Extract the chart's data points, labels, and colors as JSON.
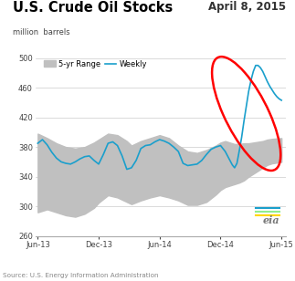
{
  "title": "U.S. Crude Oil Stocks",
  "date_label": "April 8, 2015",
  "ylabel": "million  barrels",
  "source": "Source: U.S. Energy Information Administration",
  "ylim": [
    260,
    510
  ],
  "yticks": [
    260,
    300,
    340,
    380,
    420,
    460,
    500
  ],
  "xtick_labels": [
    "Jun-13",
    "Dec-13",
    "Jun-14",
    "Dec-14",
    "Jun-15"
  ],
  "xtick_positions": [
    0,
    26,
    52,
    78,
    104
  ],
  "xlim": [
    -1,
    106
  ],
  "legend_range_label": "5-yr Range",
  "legend_weekly_label": "Weekly",
  "weekly_color": "#1A9FCC",
  "range_color": "#C0C0C0",
  "ellipse_color": "red",
  "background_color": "#FFFFFF",
  "weekly_keypoints": [
    [
      0,
      385
    ],
    [
      2,
      390
    ],
    [
      4,
      383
    ],
    [
      6,
      373
    ],
    [
      8,
      365
    ],
    [
      10,
      360
    ],
    [
      12,
      358
    ],
    [
      14,
      357
    ],
    [
      16,
      360
    ],
    [
      18,
      364
    ],
    [
      20,
      367
    ],
    [
      22,
      368
    ],
    [
      24,
      362
    ],
    [
      26,
      357
    ],
    [
      28,
      370
    ],
    [
      30,
      385
    ],
    [
      32,
      387
    ],
    [
      34,
      382
    ],
    [
      36,
      368
    ],
    [
      38,
      350
    ],
    [
      40,
      352
    ],
    [
      42,
      362
    ],
    [
      44,
      378
    ],
    [
      46,
      382
    ],
    [
      48,
      383
    ],
    [
      50,
      387
    ],
    [
      52,
      390
    ],
    [
      54,
      388
    ],
    [
      56,
      385
    ],
    [
      58,
      380
    ],
    [
      60,
      374
    ],
    [
      62,
      358
    ],
    [
      64,
      355
    ],
    [
      66,
      356
    ],
    [
      68,
      357
    ],
    [
      70,
      362
    ],
    [
      72,
      370
    ],
    [
      74,
      377
    ],
    [
      76,
      380
    ],
    [
      78,
      382
    ],
    [
      80,
      374
    ],
    [
      82,
      362
    ],
    [
      83,
      356
    ],
    [
      84,
      352
    ],
    [
      85,
      358
    ],
    [
      86,
      375
    ],
    [
      87,
      393
    ],
    [
      88,
      415
    ],
    [
      89,
      435
    ],
    [
      90,
      455
    ],
    [
      91,
      470
    ],
    [
      92,
      482
    ],
    [
      93,
      490
    ],
    [
      94,
      490
    ],
    [
      95,
      487
    ],
    [
      96,
      482
    ],
    [
      97,
      475
    ],
    [
      98,
      468
    ],
    [
      99,
      462
    ],
    [
      100,
      457
    ],
    [
      101,
      452
    ],
    [
      102,
      448
    ],
    [
      103,
      445
    ],
    [
      104,
      443
    ]
  ],
  "range_upper_keypoints": [
    [
      0,
      398
    ],
    [
      4,
      392
    ],
    [
      8,
      385
    ],
    [
      12,
      380
    ],
    [
      16,
      378
    ],
    [
      20,
      380
    ],
    [
      24,
      386
    ],
    [
      26,
      390
    ],
    [
      28,
      394
    ],
    [
      30,
      398
    ],
    [
      34,
      396
    ],
    [
      38,
      388
    ],
    [
      40,
      382
    ],
    [
      44,
      388
    ],
    [
      48,
      392
    ],
    [
      52,
      396
    ],
    [
      56,
      392
    ],
    [
      60,
      382
    ],
    [
      64,
      374
    ],
    [
      68,
      372
    ],
    [
      72,
      376
    ],
    [
      76,
      382
    ],
    [
      78,
      386
    ],
    [
      80,
      388
    ],
    [
      82,
      386
    ],
    [
      84,
      384
    ],
    [
      86,
      384
    ],
    [
      88,
      385
    ],
    [
      90,
      385
    ],
    [
      92,
      386
    ],
    [
      94,
      387
    ],
    [
      96,
      388
    ],
    [
      98,
      390
    ],
    [
      100,
      391
    ],
    [
      104,
      392
    ]
  ],
  "range_lower_keypoints": [
    [
      0,
      292
    ],
    [
      4,
      296
    ],
    [
      8,
      292
    ],
    [
      12,
      288
    ],
    [
      16,
      286
    ],
    [
      20,
      290
    ],
    [
      24,
      298
    ],
    [
      26,
      305
    ],
    [
      28,
      310
    ],
    [
      30,
      315
    ],
    [
      34,
      312
    ],
    [
      38,
      306
    ],
    [
      40,
      303
    ],
    [
      44,
      308
    ],
    [
      48,
      312
    ],
    [
      52,
      315
    ],
    [
      56,
      312
    ],
    [
      60,
      308
    ],
    [
      64,
      302
    ],
    [
      68,
      302
    ],
    [
      72,
      306
    ],
    [
      76,
      316
    ],
    [
      78,
      322
    ],
    [
      80,
      326
    ],
    [
      82,
      328
    ],
    [
      84,
      330
    ],
    [
      86,
      332
    ],
    [
      88,
      335
    ],
    [
      90,
      340
    ],
    [
      92,
      344
    ],
    [
      94,
      348
    ],
    [
      96,
      352
    ],
    [
      98,
      356
    ],
    [
      100,
      358
    ],
    [
      104,
      360
    ]
  ]
}
